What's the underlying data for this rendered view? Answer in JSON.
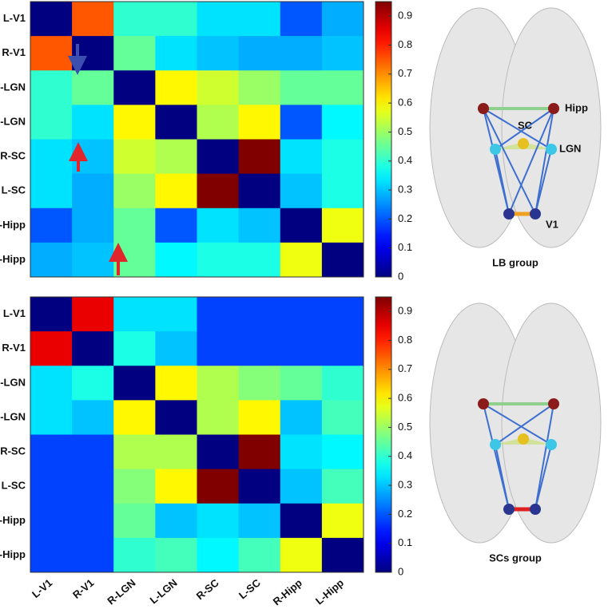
{
  "chart_data": [
    {
      "type": "heatmap",
      "colormap": "jet",
      "rows": [
        "L-V1",
        "R-V1",
        "R-LGN",
        "L-LGN",
        "R-SC",
        "L-SC",
        "R-Hipp",
        "L-Hipp"
      ],
      "values": [
        [
          0,
          0.75,
          0.4,
          0.4,
          0.33,
          0.33,
          0.2,
          0.28
        ],
        [
          0.75,
          0,
          0.45,
          0.33,
          0.3,
          0.28,
          0.28,
          0.3
        ],
        [
          0.4,
          0.45,
          0,
          0.6,
          0.55,
          0.5,
          0.45,
          0.45
        ],
        [
          0.4,
          0.33,
          0.6,
          0,
          0.52,
          0.6,
          0.2,
          0.35
        ],
        [
          0.33,
          0.3,
          0.55,
          0.52,
          0,
          0.95,
          0.33,
          0.38
        ],
        [
          0.33,
          0.28,
          0.5,
          0.6,
          0.95,
          0,
          0.3,
          0.38
        ],
        [
          0.2,
          0.28,
          0.45,
          0.2,
          0.33,
          0.3,
          0,
          0.58
        ],
        [
          0.28,
          0.3,
          0.45,
          0.35,
          0.38,
          0.38,
          0.58,
          0
        ]
      ],
      "zlim": [
        0,
        0.95
      ],
      "zticks": [
        0,
        0.1,
        0.2,
        0.3,
        0.4,
        0.5,
        0.6,
        0.7,
        0.8,
        0.9
      ],
      "brain_labels": [
        "Hipp",
        "SC",
        "LGN",
        "V1"
      ],
      "group": "LB group"
    },
    {
      "type": "heatmap",
      "colormap": "jet",
      "rows": [
        "L-V1",
        "R-V1",
        "R-LGN",
        "L-LGN",
        "R-SC",
        "L-SC",
        "R-Hipp",
        "L-Hipp"
      ],
      "columns": [
        "L-V1",
        "R-V1",
        "R-LGN",
        "L-LGN",
        "R-SC",
        "L-SC",
        "R-Hipp",
        "L-Hipp"
      ],
      "values": [
        [
          0,
          0.85,
          0.33,
          0.33,
          0.18,
          0.18,
          0.18,
          0.18
        ],
        [
          0.85,
          0,
          0.38,
          0.3,
          0.18,
          0.18,
          0.18,
          0.18
        ],
        [
          0.33,
          0.38,
          0,
          0.6,
          0.52,
          0.48,
          0.45,
          0.4
        ],
        [
          0.33,
          0.3,
          0.6,
          0,
          0.52,
          0.6,
          0.3,
          0.42
        ],
        [
          0.18,
          0.18,
          0.52,
          0.52,
          0,
          0.95,
          0.33,
          0.35
        ],
        [
          0.18,
          0.18,
          0.48,
          0.6,
          0.95,
          0,
          0.3,
          0.42
        ],
        [
          0.18,
          0.18,
          0.45,
          0.3,
          0.33,
          0.3,
          0,
          0.58
        ],
        [
          0.18,
          0.18,
          0.4,
          0.42,
          0.35,
          0.42,
          0.58,
          0
        ]
      ],
      "zlim": [
        0,
        0.95
      ],
      "zticks": [
        0,
        0.1,
        0.2,
        0.3,
        0.4,
        0.5,
        0.6,
        0.7,
        0.8,
        0.9
      ],
      "group": "SCs group"
    }
  ]
}
